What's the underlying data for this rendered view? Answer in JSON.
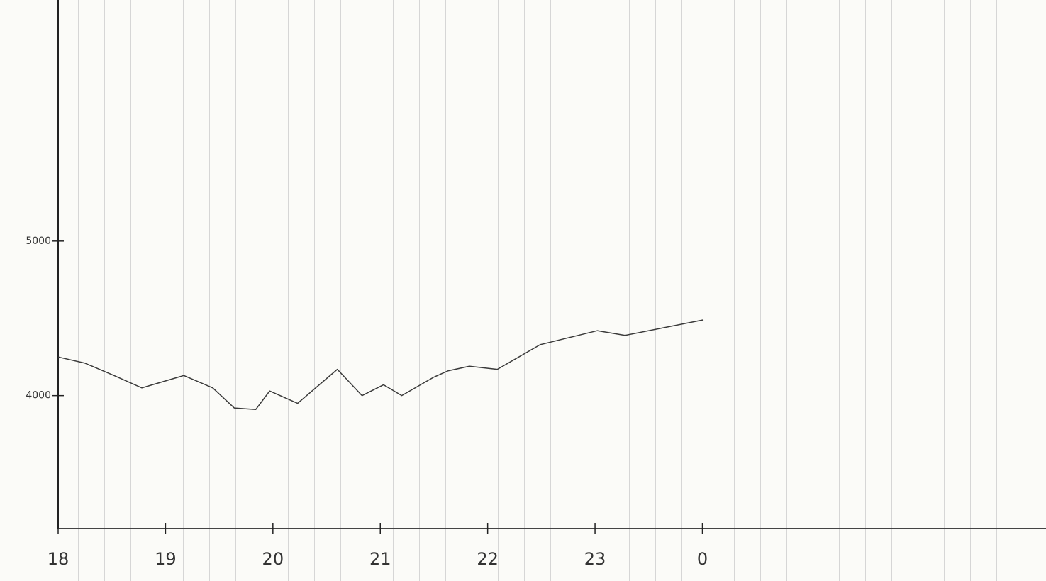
{
  "chart_data": {
    "type": "line",
    "x": [
      18,
      18.25,
      18.52,
      18.78,
      19.17,
      19.44,
      19.64,
      19.84,
      19.97,
      20.23,
      20.6,
      20.83,
      21.03,
      21.2,
      21.5,
      21.63,
      21.83,
      22.09,
      22.49,
      23.02,
      23.28,
      24.01
    ],
    "series": [
      {
        "color": "#3a3a3a",
        "values": [
          4250,
          4210,
          4130,
          4050,
          4130,
          4050,
          3920,
          3910,
          4030,
          3950,
          4170,
          4000,
          4070,
          4000,
          4120,
          4160,
          4190,
          4170,
          4330,
          4420,
          4390,
          4490
        ]
      }
    ],
    "xlim": [
      18,
      27.2
    ],
    "xticks": [
      18,
      19,
      20,
      21,
      22,
      23,
      {
        "value": 24,
        "label": "0"
      }
    ],
    "ylim": [
      3140,
      6560
    ],
    "yticks": [
      4000,
      5000
    ]
  }
}
